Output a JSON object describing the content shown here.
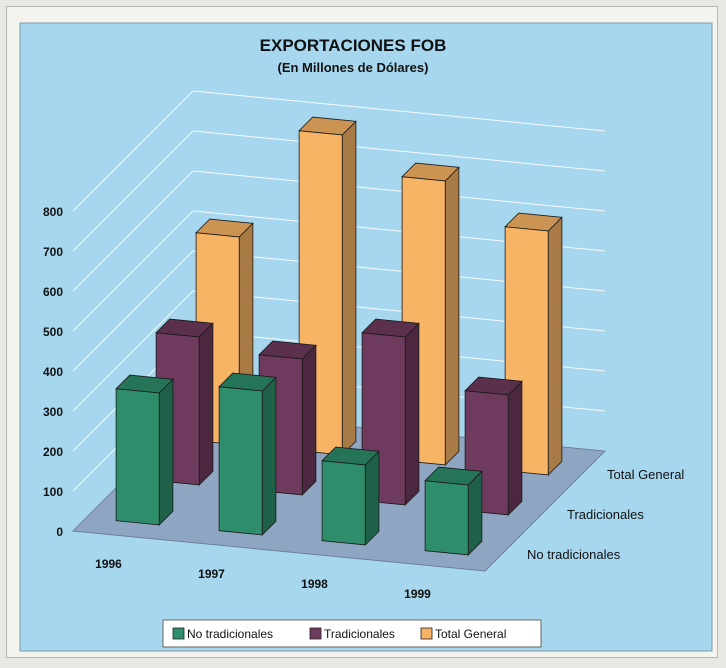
{
  "chart_data": {
    "type": "bar",
    "variant": "3d-grouped",
    "title": "EXPORTACIONES FOB",
    "subtitle": "(En Millones de Dólares)",
    "categories": [
      "1996",
      "1997",
      "1998",
      "1999"
    ],
    "series": [
      {
        "name": "No tradicionales",
        "values": [
          330,
          360,
          200,
          175
        ]
      },
      {
        "name": "Tradicionales",
        "values": [
          370,
          340,
          420,
          300
        ]
      },
      {
        "name": "Total General",
        "values": [
          520,
          800,
          710,
          610
        ]
      }
    ],
    "y_ticks": [
      "0",
      "100",
      "200",
      "300",
      "400",
      "500",
      "600",
      "700",
      "800"
    ],
    "ylim": [
      0,
      800
    ],
    "legend_position": "bottom",
    "colors": {
      "No tradicionales": "#2e8d6a",
      "Tradicionales": "#6e3a5e",
      "Total General": "#f7b465",
      "floor": "#8fa6c3",
      "background": "#a6d7ee"
    }
  }
}
